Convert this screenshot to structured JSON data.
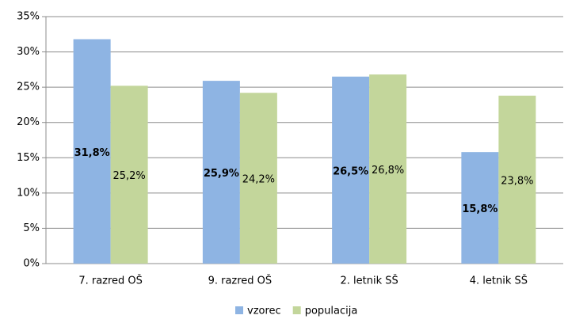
{
  "chart_data": {
    "type": "bar",
    "categories": [
      "7. razred OŠ",
      "9. razred OŠ",
      "2. letnik SŠ",
      "4. letnik SŠ"
    ],
    "series": [
      {
        "name": "vzorec",
        "color": "#8eb4e3",
        "values": [
          31.8,
          25.9,
          26.5,
          15.8
        ],
        "value_labels": [
          "31,8%",
          "25,9%",
          "26,5%",
          "15,8%"
        ]
      },
      {
        "name": "populacija",
        "color": "#c3d69b",
        "values": [
          25.2,
          24.2,
          26.8,
          23.8
        ],
        "value_labels": [
          "25,2%",
          "24,2%",
          "26,8%",
          "23,8%"
        ]
      }
    ],
    "ylim": [
      0,
      35
    ],
    "yticks": [
      {
        "value": 0,
        "label": "0%"
      },
      {
        "value": 5,
        "label": "5%"
      },
      {
        "value": 10,
        "label": "10%"
      },
      {
        "value": 15,
        "label": "15%"
      },
      {
        "value": 20,
        "label": "20%"
      },
      {
        "value": 25,
        "label": "25%"
      },
      {
        "value": 30,
        "label": "30%"
      },
      {
        "value": 35,
        "label": "35%"
      }
    ],
    "grid": true,
    "legend": "bottom"
  }
}
